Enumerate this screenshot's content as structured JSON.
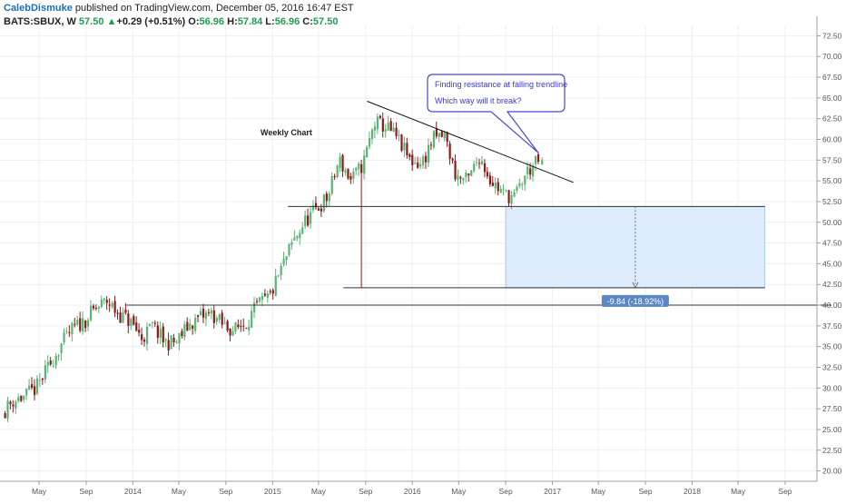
{
  "header": {
    "author": "CalebDismuke",
    "published": " published on TradingView.com, December 05, 2016 16:47 EST",
    "symbol": "BATS:SBUX, W ",
    "last": "57.50",
    "arrow": "▲",
    "change": "+0.29 (+0.51%)",
    "o_label": " O:",
    "o_value": "56.96",
    "h_label": " H:",
    "h_value": "57.84",
    "l_label": " L:",
    "l_value": "56.96",
    "c_label": " C:",
    "c_value": "57.50"
  },
  "colors": {
    "up": "#59b573",
    "down": "#8b1a1a",
    "trendline": "#111111",
    "measure_fill": "#ddebfb",
    "measure_border": "#9cc3ea",
    "callout_border": "#4747d6",
    "callout_text": "#3a3ac8",
    "badge": "#5b87c2"
  },
  "chart_data": {
    "type": "candlestick",
    "title": "Weekly Chart",
    "symbol": "BATS:SBUX",
    "interval": "W",
    "ylim": [
      18.75,
      73.75
    ],
    "yticks": [
      20.0,
      22.5,
      25.0,
      27.5,
      30.0,
      32.5,
      35.0,
      37.5,
      40.0,
      42.5,
      45.0,
      47.5,
      50.0,
      52.5,
      55.0,
      57.5,
      60.0,
      62.5,
      65.0,
      67.5,
      70.0,
      72.5
    ],
    "x_ticks": [
      {
        "label": "May",
        "date": "2013-05"
      },
      {
        "label": "Sep",
        "date": "2013-09"
      },
      {
        "label": "2014",
        "date": "2014-01"
      },
      {
        "label": "May",
        "date": "2014-05"
      },
      {
        "label": "Sep",
        "date": "2014-09"
      },
      {
        "label": "2015",
        "date": "2015-01"
      },
      {
        "label": "May",
        "date": "2015-05"
      },
      {
        "label": "Sep",
        "date": "2015-09"
      },
      {
        "label": "2016",
        "date": "2016-01"
      },
      {
        "label": "May",
        "date": "2016-05"
      },
      {
        "label": "Sep",
        "date": "2016-09"
      },
      {
        "label": "2017",
        "date": "2017-01"
      },
      {
        "label": "May",
        "date": "2017-05"
      },
      {
        "label": "Sep",
        "date": "2017-09"
      },
      {
        "label": "2018",
        "date": "2018-01"
      },
      {
        "label": "May",
        "date": "2018-05"
      },
      {
        "label": "Sep",
        "date": "2018-09"
      }
    ],
    "price_path": [
      [
        "2013-02-01",
        27.0
      ],
      [
        "2013-03-01",
        28.5
      ],
      [
        "2013-04-01",
        29.0
      ],
      [
        "2013-05-01",
        30.0
      ],
      [
        "2013-06-01",
        32.5
      ],
      [
        "2013-07-01",
        35.0
      ],
      [
        "2013-08-01",
        37.0
      ],
      [
        "2013-09-01",
        38.0
      ],
      [
        "2013-10-01",
        39.5
      ],
      [
        "2013-11-01",
        40.5
      ],
      [
        "2013-12-01",
        39.0
      ],
      [
        "2014-01-01",
        38.0
      ],
      [
        "2014-02-01",
        36.0
      ],
      [
        "2014-03-01",
        37.5
      ],
      [
        "2014-04-01",
        35.5
      ],
      [
        "2014-05-01",
        35.5
      ],
      [
        "2014-06-01",
        37.5
      ],
      [
        "2014-07-01",
        38.5
      ],
      [
        "2014-08-01",
        39.0
      ],
      [
        "2014-09-01",
        37.5
      ],
      [
        "2014-10-01",
        37.0
      ],
      [
        "2014-11-01",
        38.0
      ],
      [
        "2014-12-01",
        40.0
      ],
      [
        "2015-01-01",
        41.0
      ],
      [
        "2015-02-01",
        44.5
      ],
      [
        "2015-03-01",
        47.5
      ],
      [
        "2015-04-01",
        50.0
      ],
      [
        "2015-05-01",
        51.5
      ],
      [
        "2015-06-01",
        53.0
      ],
      [
        "2015-07-01",
        57.5
      ],
      [
        "2015-08-01",
        55.0
      ],
      [
        "2015-09-01",
        57.0
      ],
      [
        "2015-10-01",
        62.0
      ],
      [
        "2015-11-01",
        61.5
      ],
      [
        "2015-12-01",
        60.0
      ],
      [
        "2016-01-01",
        57.5
      ],
      [
        "2016-02-01",
        57.0
      ],
      [
        "2016-03-01",
        60.0
      ],
      [
        "2016-04-01",
        60.5
      ],
      [
        "2016-05-01",
        55.5
      ],
      [
        "2016-06-01",
        55.0
      ],
      [
        "2016-07-01",
        58.0
      ],
      [
        "2016-08-01",
        55.0
      ],
      [
        "2016-09-01",
        53.5
      ],
      [
        "2016-10-01",
        53.0
      ],
      [
        "2016-11-01",
        56.0
      ],
      [
        "2016-12-05",
        57.5
      ]
    ],
    "spike_lows": [
      {
        "date": "2015-08-24",
        "low": 42.1
      }
    ],
    "last_candle": {
      "date": "2016-12-05",
      "open": 56.96,
      "high": 57.84,
      "low": 56.96,
      "close": 57.5
    },
    "annotations": [
      {
        "kind": "trendline",
        "start": [
          "2015-09-05",
          64.6
        ],
        "end": [
          "2017-02-25",
          54.8
        ]
      },
      {
        "kind": "hline",
        "price": 51.9,
        "start": "2015-02-10",
        "end": "2018-07-10"
      },
      {
        "kind": "hline",
        "price": 42.1,
        "start": "2015-07-05",
        "end": "2018-07-10"
      },
      {
        "kind": "hline",
        "price": 40.0,
        "start": "2013-12-15",
        "end": "2018-12-31"
      },
      {
        "kind": "price_range",
        "top": 51.9,
        "bottom": 42.1,
        "start": "2016-09-01",
        "end": "2018-07-10",
        "label": "-9.84 (-18.92%)"
      },
      {
        "kind": "callout",
        "lines": [
          "Finding resistance at falling trendline",
          "Which way will it break?"
        ],
        "pointer": [
          "2016-11-25",
          58.4
        ]
      }
    ]
  }
}
